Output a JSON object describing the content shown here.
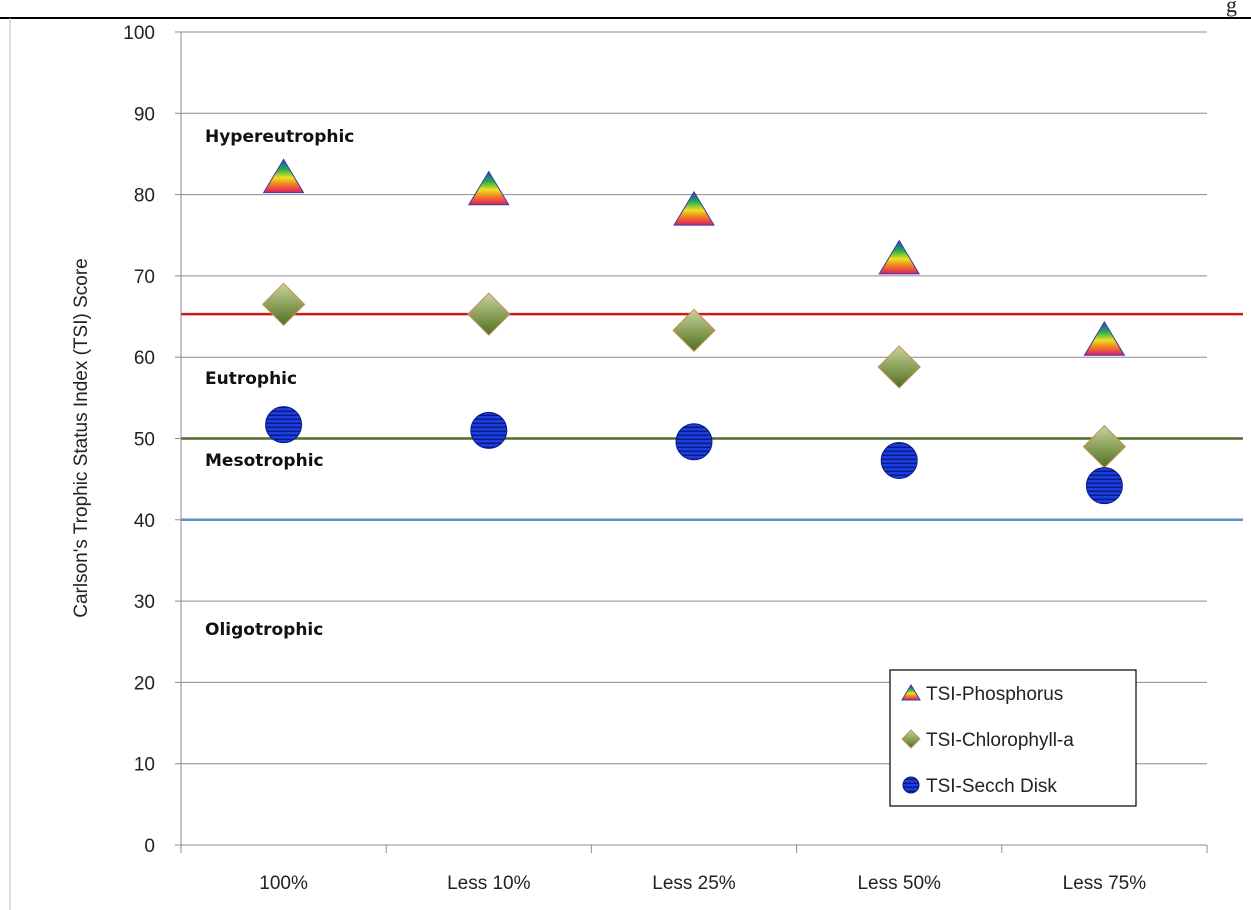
{
  "page": {
    "corner_text": "g"
  },
  "chart_data": {
    "type": "scatter",
    "title": "",
    "xlabel": "",
    "ylabel": "Carlson's Trophic Status Index  (TSI) Score",
    "categories": [
      "100%",
      "Less 10%",
      "Less 25%",
      "Less 50%",
      "Less 75%"
    ],
    "ylim": [
      0,
      100
    ],
    "yticks": [
      0,
      10,
      20,
      30,
      40,
      50,
      60,
      70,
      80,
      90,
      100
    ],
    "grid": "horizontal",
    "legend_position": "bottom-right",
    "series": [
      {
        "name": "TSI-Phosphorus",
        "marker": "triangle",
        "values": [
          82,
          80.5,
          78,
          72,
          62
        ]
      },
      {
        "name": "TSI-Chlorophyll-a",
        "marker": "diamond",
        "values": [
          66.5,
          65.3,
          63.3,
          58.8,
          49
        ]
      },
      {
        "name": "TSI-Secch Disk",
        "marker": "circle",
        "values": [
          51.7,
          51,
          49.6,
          47.3,
          44.2
        ]
      }
    ],
    "threshold_lines": [
      {
        "value": 65.3,
        "color": "#cc1a1a"
      },
      {
        "value": 50,
        "color": "#4f6f2a"
      },
      {
        "value": 40,
        "color": "#5b8fc7"
      }
    ],
    "zone_labels": [
      {
        "text": "Hypereutrophic",
        "y": 86.5
      },
      {
        "text": "Eutrophic",
        "y": 56.7
      },
      {
        "text": "Mesotrophic",
        "y": 46.6
      },
      {
        "text": "Oligotrophic",
        "y": 25.8
      }
    ]
  }
}
